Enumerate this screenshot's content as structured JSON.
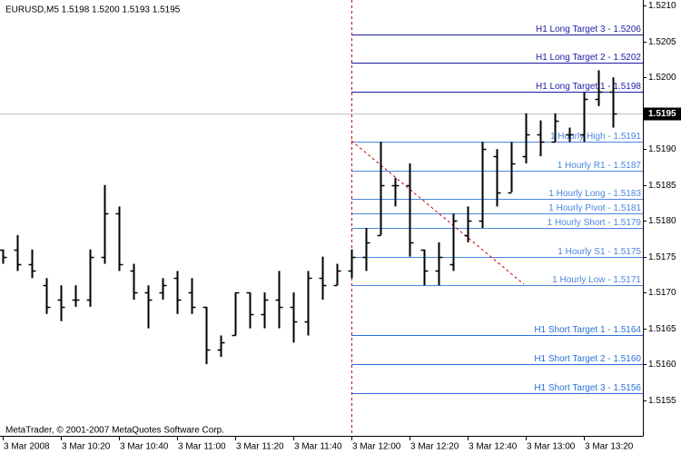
{
  "chart_data": {
    "type": "ohlc",
    "title": "EURUSD,M5  1.5198 1.5200 1.5193 1.5195",
    "footer": "MetaTrader, © 2001-2007 MetaQuotes Software Corp.",
    "color": "#000000",
    "categories": [
      "3 Mar 2008",
      null,
      null,
      null,
      "3 Mar 10:20",
      null,
      null,
      null,
      "3 Mar 10:40",
      null,
      null,
      null,
      "3 Mar 11:00",
      null,
      null,
      null,
      "3 Mar 11:20",
      null,
      null,
      null,
      "3 Mar 11:40",
      null,
      null,
      null,
      "3 Mar 12:00",
      null,
      null,
      null,
      "3 Mar 12:20",
      null,
      null,
      null,
      "3 Mar 12:40",
      null,
      null,
      null,
      "3 Mar 13:00",
      null,
      null,
      null,
      "3 Mar 13:20",
      null,
      null
    ],
    "open": [
      1.5176,
      1.5176,
      1.5174,
      1.5171,
      1.5169,
      1.5169,
      1.5169,
      1.5175,
      1.5181,
      1.5173,
      1.517,
      1.517,
      1.5172,
      1.517,
      1.5168,
      1.5162,
      1.5164,
      1.517,
      1.5167,
      1.5169,
      1.5168,
      1.5166,
      1.5172,
      1.5171,
      1.5173,
      1.5175,
      1.5178,
      1.5185,
      1.5185,
      1.5176,
      1.5173,
      1.5174,
      1.5178,
      1.518,
      1.5189,
      1.5184,
      1.5189,
      1.5192,
      1.5191,
      1.5192,
      1.5192,
      1.5197,
      1.5198
    ],
    "high": [
      1.5176,
      1.5178,
      1.5176,
      1.5172,
      1.5171,
      1.5171,
      1.5176,
      1.5185,
      1.5182,
      1.5174,
      1.5171,
      1.5172,
      1.5173,
      1.5172,
      1.5168,
      1.5164,
      1.517,
      1.517,
      1.517,
      1.5173,
      1.517,
      1.5173,
      1.5175,
      1.5174,
      1.5176,
      1.5179,
      1.5191,
      1.5186,
      1.5188,
      1.5176,
      1.5177,
      1.5181,
      1.5182,
      1.5191,
      1.519,
      1.5191,
      1.5195,
      1.5194,
      1.5195,
      1.5193,
      1.5198,
      1.5201,
      1.52
    ],
    "low": [
      1.5174,
      1.5173,
      1.5172,
      1.5167,
      1.5166,
      1.5168,
      1.5168,
      1.5174,
      1.5173,
      1.5169,
      1.5165,
      1.5169,
      1.5167,
      1.5167,
      1.516,
      1.5161,
      1.5164,
      1.5165,
      1.5165,
      1.5165,
      1.5163,
      1.5164,
      1.5169,
      1.5171,
      1.5172,
      1.5173,
      1.5178,
      1.5182,
      1.5175,
      1.5171,
      1.5171,
      1.5173,
      1.5177,
      1.5179,
      1.5182,
      1.5184,
      1.5188,
      1.5189,
      1.5191,
      1.5191,
      1.5191,
      1.5196,
      1.5193
    ],
    "close": [
      1.5175,
      1.5174,
      1.5173,
      1.5168,
      1.5168,
      1.5169,
      1.5175,
      1.5181,
      1.5174,
      1.517,
      1.5169,
      1.5171,
      1.5169,
      1.5168,
      1.5162,
      1.5163,
      1.517,
      1.5167,
      1.5169,
      1.5168,
      1.5166,
      1.5172,
      1.5171,
      1.5173,
      1.5175,
      1.5177,
      1.5185,
      1.5185,
      1.5177,
      1.5173,
      1.5175,
      1.518,
      1.518,
      1.519,
      1.5184,
      1.5188,
      1.5192,
      1.5191,
      1.5194,
      1.5192,
      1.5197,
      1.5198,
      1.5195
    ],
    "ylim": [
      1.515,
      1.52108
    ],
    "yticks": [
      {
        "value": 1.521,
        "label": "1.5210"
      },
      1.5205,
      {
        "value": 1.52,
        "label": "1.5200"
      },
      1.5195,
      {
        "value": 1.519,
        "label": "1.5190"
      },
      1.5185,
      {
        "value": 1.518,
        "label": "1.5180"
      },
      1.5175,
      {
        "value": 1.517,
        "label": "1.5170"
      },
      1.5165,
      {
        "value": 1.516,
        "label": "1.5160"
      },
      1.5155
    ],
    "last_price": 1.5195,
    "levels": [
      {
        "label": "H1 Long Target 3 - 1.5206",
        "value": 1.5206,
        "color": "#1c1ca8"
      },
      {
        "label": "H1 Long Target 2 - 1.5202",
        "value": 1.5202,
        "color": "#1c1ca8"
      },
      {
        "label": "H1 Long Target 1 - 1.5198",
        "value": 1.5198,
        "color": "#1c1ca8"
      },
      {
        "label": "1 Hourly High - 1.5191",
        "value": 1.5191,
        "color": "#4a86e0"
      },
      {
        "label": "1 Hourly R1 - 1.5187",
        "value": 1.5187,
        "color": "#4a86e0"
      },
      {
        "label": "1 Hourly Long - 1.5183",
        "value": 1.5183,
        "color": "#4a86e0"
      },
      {
        "label": "1 Hourly Pivot - 1.5181",
        "value": 1.5181,
        "color": "#4a86e0"
      },
      {
        "label": "1 Hourly Short - 1.5179",
        "value": 1.5179,
        "color": "#4a86e0"
      },
      {
        "label": "1 Hourly S1 - 1.5175",
        "value": 1.5175,
        "color": "#4a86e0"
      },
      {
        "label": "1 Hourly Low - 1.5171",
        "value": 1.5171,
        "color": "#4a86e0"
      },
      {
        "label": "H1 Short Target 1 - 1.5164",
        "value": 1.5164,
        "color": "#2a70d8"
      },
      {
        "label": "H1 Short Target 2 - 1.5160",
        "value": 1.516,
        "color": "#2a70d8"
      },
      {
        "label": "H1 Short Target 3 - 1.5156",
        "value": 1.5156,
        "color": "#2a70d8"
      }
    ]
  }
}
